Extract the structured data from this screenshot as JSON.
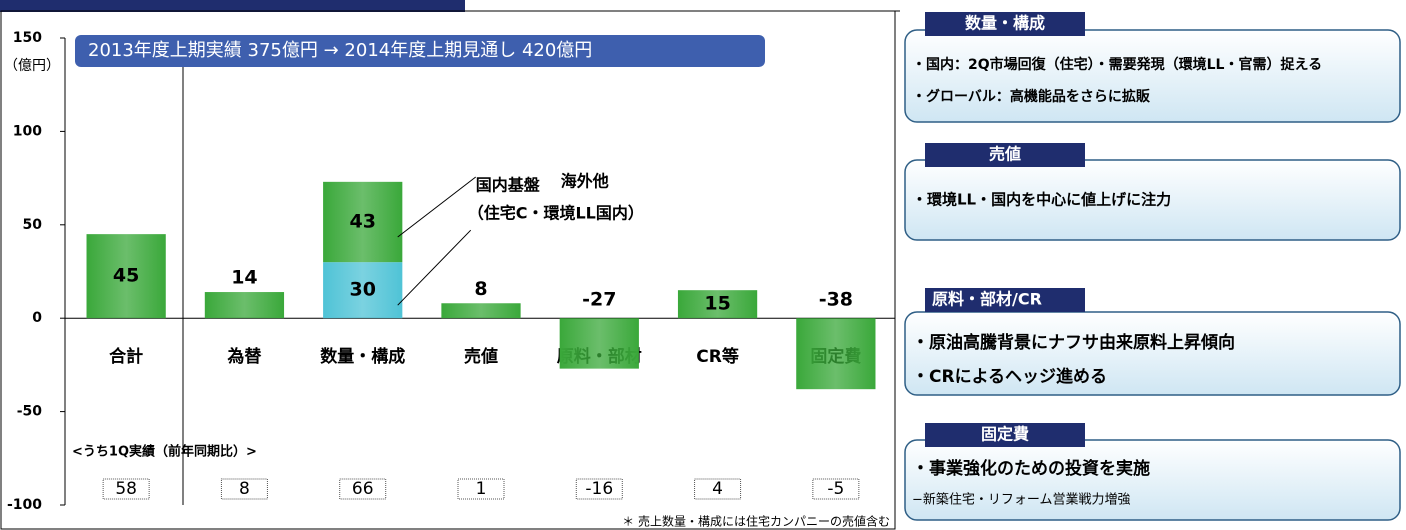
{
  "chart_data": {
    "type": "bar",
    "banner": "2013年度上期実績 375億円 → 2014年度上期見通し 420億円",
    "y_unit": "（億円）",
    "categories": [
      "合計",
      "為替",
      "数量・構成",
      "売値",
      "原料・部材",
      "CR等",
      "固定費"
    ],
    "values": [
      45,
      14,
      null,
      8,
      -27,
      15,
      -38
    ],
    "color": "#3aa83a",
    "stack": [
      {
        "name": "国内基盤",
        "note": "（住宅C・環境LL国内）",
        "color": "#4fc3d6",
        "values": [
          null,
          null,
          30,
          null,
          null,
          null,
          null
        ]
      },
      {
        "name": "海外他",
        "color": "#3aa83a",
        "values": [
          null,
          null,
          43,
          null,
          null,
          null,
          null
        ]
      }
    ],
    "ylim": [
      -100,
      150
    ],
    "yticks": [
      -100,
      -50,
      0,
      50,
      100,
      150
    ],
    "q1_label": "<うち1Q実績（前年同期比）>",
    "q1_values": [
      58,
      8,
      66,
      1,
      -16,
      4,
      -5
    ],
    "footnote": "＊ 売上数量・構成には住宅カンパニーの売値含む"
  },
  "panels": [
    {
      "title": "数量・構成",
      "lines": [
        "・国内：2Q市場回復（住宅）・需要発現（環境LL・官需）捉える",
        "・グローバル：高機能品をさらに拡販"
      ]
    },
    {
      "title": "売値",
      "lines": [
        "・環境LL・国内を中心に値上げに注力"
      ]
    },
    {
      "title": "原料・部材/CR",
      "lines": [
        "・原油高騰背景にナフサ由来原料上昇傾向",
        "・CRによるヘッジ進める"
      ]
    },
    {
      "title": "固定費",
      "lines": [
        "・事業強化のための投資を実施"
      ],
      "sublines": [
        "−新築住宅・リフォーム営業戦力増強"
      ]
    }
  ]
}
